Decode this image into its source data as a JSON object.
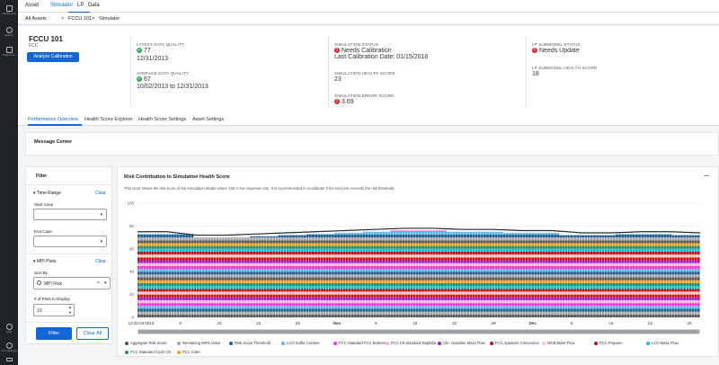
{
  "leftnav": {
    "items": [
      {
        "label": "Dashboard",
        "icon": "home-icon"
      },
      {
        "label": "Search",
        "icon": "search-icon"
      },
      {
        "label": "Diagnostic",
        "icon": "tree-icon"
      },
      {
        "label": "Help",
        "icon": "help-icon"
      },
      {
        "label": "User Settings",
        "icon": "user-icon"
      },
      {
        "label": "",
        "icon": "logout-icon"
      }
    ]
  },
  "topbar": {
    "asset_tab": "Asset",
    "simulator_tab": "Simulator",
    "lp_tab": "LP",
    "data_tab": "Data"
  },
  "breadcrumb": {
    "item1": "All Assets",
    "sep": ">",
    "item2": "FCCU 101",
    "item3": "Simulator"
  },
  "asset": {
    "name": "FCCU 101",
    "type": "FCC",
    "analyze_button": "Analyze Calibration",
    "latest_quality_label": "LATEST DATA QUALITY",
    "latest_quality_value": "77",
    "latest_quality_date": "12/31/2013",
    "avg_quality_label": "AVERAGE DATA QUALITY",
    "avg_quality_value": "67",
    "avg_quality_range": "10/02/2013 to 12/31/2013",
    "sim_status_label": "SIMULATION STATUS",
    "sim_status_value": "Needs Calibration",
    "last_cal": "Last Calibration Date: 01/15/2018",
    "sim_health_label": "SIMULATION HEALTH SCORE",
    "sim_health_value": "23",
    "sim_error_label": "SIMULATION ERROR SCORE",
    "sim_error_value": "3.69",
    "lp_status_label": "LP SUBMODEL STATUS",
    "lp_status_value": "Needs Update",
    "lp_health_label": "LP SUBMODEL HEALTH SCORE",
    "lp_health_value": "18"
  },
  "page_tabs": [
    "Performance Overview",
    "Health Score Explorer",
    "Health Score Settings",
    "Asset Settings"
  ],
  "message_center": {
    "title": "Message Center"
  },
  "filter": {
    "title": "Filter",
    "time_range": "Time Range",
    "clear": "Clear",
    "start_case": "Start Case",
    "end_case": "End Case",
    "mpi_plots": "MPI Plots",
    "sort_by": "Sort By",
    "sort_value": "MPI Risk",
    "num_plots_label": "# of Plots to Display",
    "num_plots_value": "10",
    "filter_button": "Filter",
    "clear_all_button": "Clear All"
  },
  "chart_panel": {
    "title": "Risk Contribution to Simulation Health Score",
    "description": "This chart shows the risk score of the Simulation Model where 100 is the maximum risk. It is recommended to recalibrate if the total risk exceeds the risk threshold.",
    "menu": "..."
  },
  "chart_data": {
    "type": "bar",
    "y_ticks": [
      "100",
      "80",
      "60",
      "40",
      "20",
      "0"
    ],
    "ylim": [
      0,
      100
    ],
    "x_ticks": [
      "13:32:03 0013",
      "8",
      "15",
      "22",
      "29",
      "Nov",
      "8",
      "15",
      "22",
      "29",
      "Dec",
      "8",
      "15",
      "22",
      "29"
    ],
    "risk_threshold_approx": [
      75,
      75,
      72,
      72,
      73,
      74,
      75,
      76,
      77,
      78,
      78,
      77,
      77,
      76,
      76,
      74,
      74,
      75,
      75,
      74
    ],
    "series": [
      {
        "name": "Aggregate Risk Score",
        "color": "#555555"
      },
      {
        "name": "Remaining MPIs Value",
        "color": "#aaaaaa"
      },
      {
        "name": "Risk Score Threshold",
        "color": "#1f5d8c"
      },
      {
        "name": "LCO Sulfur Content",
        "color": "#5bb8e8"
      },
      {
        "name": "FCC Standard FCC Bottoms",
        "color": "#ff33cc"
      },
      {
        "name": "FCC C5 Standard Naphtha",
        "color": "#ffb3d9"
      },
      {
        "name": "C5+ Gasoline Mass Flow",
        "color": "#9b1fc7"
      },
      {
        "name": "FCC Apparent Conversion",
        "color": "#d01010"
      },
      {
        "name": "MCB Mass Flow",
        "color": "#ffc2c2"
      },
      {
        "name": "FCC Propane",
        "color": "#b01515"
      },
      {
        "name": "LCO Mass Flow",
        "color": "#18c0d0"
      },
      {
        "name": "FCC Standard Cycle Oil",
        "color": "#1f8a70"
      },
      {
        "name": "FCC Coke",
        "color": "#f2a21b"
      }
    ]
  }
}
